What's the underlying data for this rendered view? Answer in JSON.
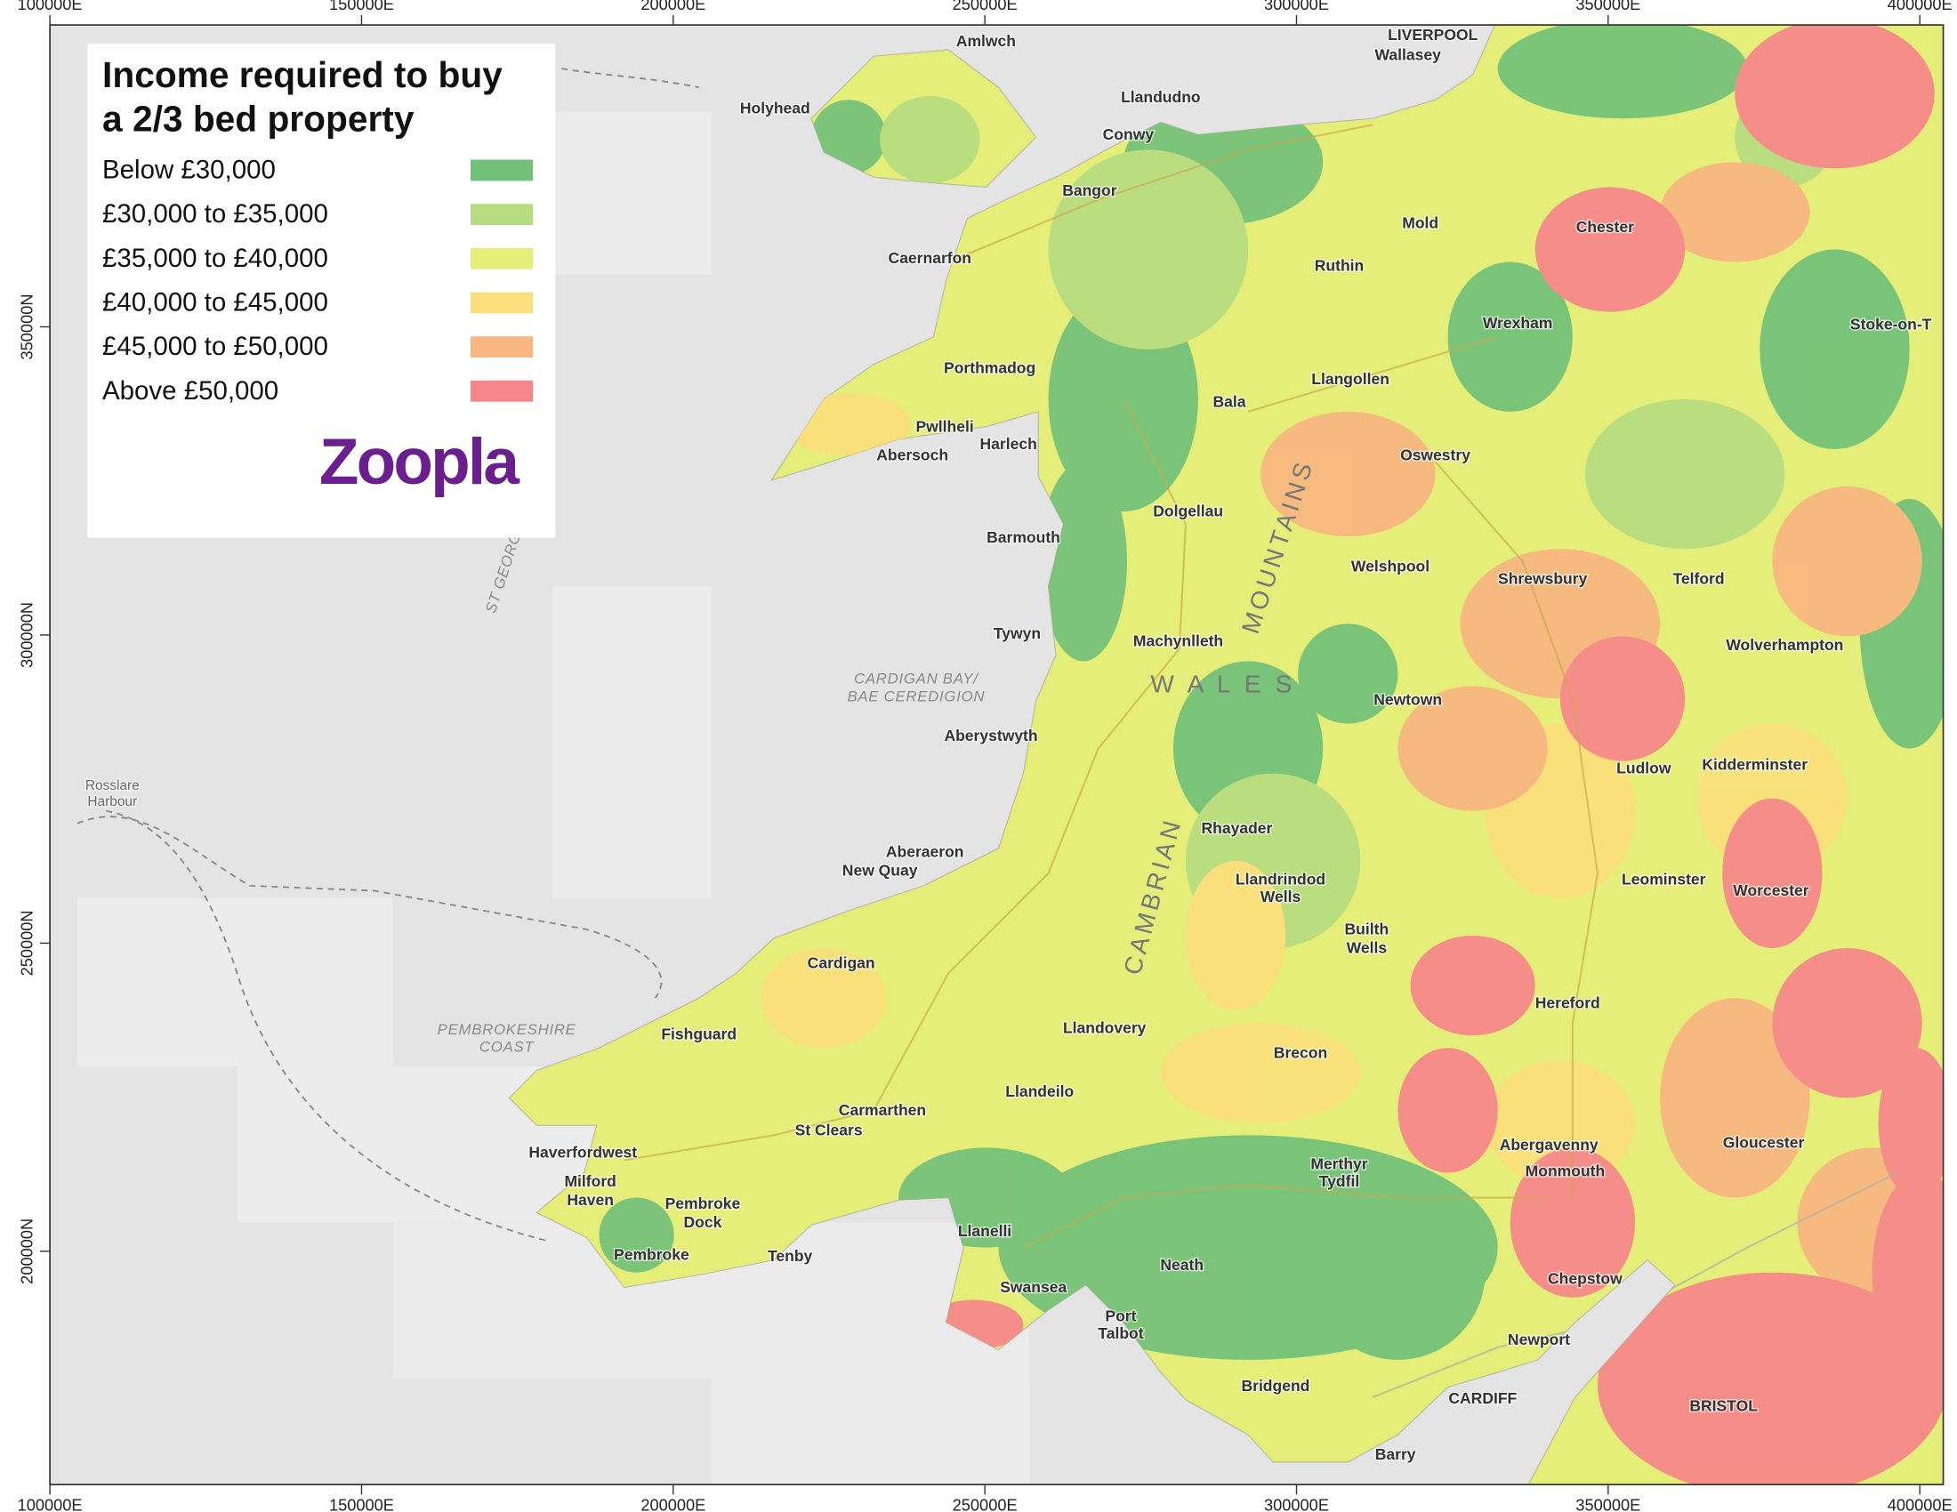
{
  "legend": {
    "title_lines": [
      "Income required to buy",
      "a 2/3 bed property"
    ],
    "items": [
      {
        "label": "Below £30,000",
        "color": "#72c17a"
      },
      {
        "label": "£30,000 to £35,000",
        "color": "#b6dc80"
      },
      {
        "label": "£35,000 to £40,000",
        "color": "#e4ee78"
      },
      {
        "label": "£40,000 to £45,000",
        "color": "#fbdf7c"
      },
      {
        "label": "£45,000 to £50,000",
        "color": "#f8b681"
      },
      {
        "label": "Above £50,000",
        "color": "#f7868a"
      }
    ],
    "brand": "Zoopla"
  },
  "map": {
    "eastings": [
      {
        "value": 100000,
        "label": "100000E"
      },
      {
        "value": 150000,
        "label": "150000E"
      },
      {
        "value": 200000,
        "label": "200000E"
      },
      {
        "value": 250000,
        "label": "250000E"
      },
      {
        "value": 300000,
        "label": "300000E"
      },
      {
        "value": 350000,
        "label": "350000E"
      },
      {
        "value": 400000,
        "label": "400000E"
      }
    ],
    "northings": [
      {
        "value": 200000,
        "label": "200000N"
      },
      {
        "value": 250000,
        "label": "250000N"
      },
      {
        "value": 300000,
        "label": "300000N"
      },
      {
        "value": 350000,
        "label": "350000N"
      }
    ],
    "places": [
      "LIVERPOOL",
      "Wallasey",
      "Holyhead",
      "Amlwch",
      "Bangor",
      "Caernarfon",
      "Llandudno",
      "Conwy",
      "Porthmadog",
      "Pwllheli",
      "Abersoch",
      "Harlech",
      "Dolgellau",
      "Barmouth",
      "Tywyn",
      "Machynlleth",
      "Aberystwyth",
      "Aberaeron",
      "New Quay",
      "Cardigan",
      "Fishguard",
      "Haverfordwest",
      "Milford",
      "Haven",
      "Pembroke",
      "Dock",
      "Pembroke",
      "Tenby",
      "Carmarthen",
      "St Clears",
      "Llanelli",
      "Swansea",
      "Neath",
      "Port",
      "Talbot",
      "Bridgend",
      "CARDIFF",
      "Barry",
      "Newport",
      "Merthyr",
      "Tydfil",
      "Brecon",
      "Llandovery",
      "Llandeilo",
      "Abergavenny",
      "Monmouth",
      "Chepstow",
      "Hereford",
      "Builth",
      "Wells",
      "Llandrindod",
      "Wells",
      "Rhayader",
      "Newtown",
      "Welshpool",
      "Oswestry",
      "Llangollen",
      "Wrexham",
      "Mold",
      "Ruthin",
      "Bala",
      "Shrewsbury",
      "Telford",
      "Wolverhampton",
      "Chester",
      "Worcester",
      "Gloucester",
      "BRISTOL",
      "Leominster",
      "Ludlow",
      "Kidderminster",
      "Stoke-on-T",
      "Rosslare",
      "Harbour"
    ],
    "regions": [
      "CARDIGAN BAY/",
      "BAE CEREDIGION",
      "PEMBROKESHIRE",
      "COAST",
      "CAMBRIAN",
      "MOUNTAINS",
      "W A L E S",
      "ST GEORGE'S CHANNEL"
    ]
  }
}
